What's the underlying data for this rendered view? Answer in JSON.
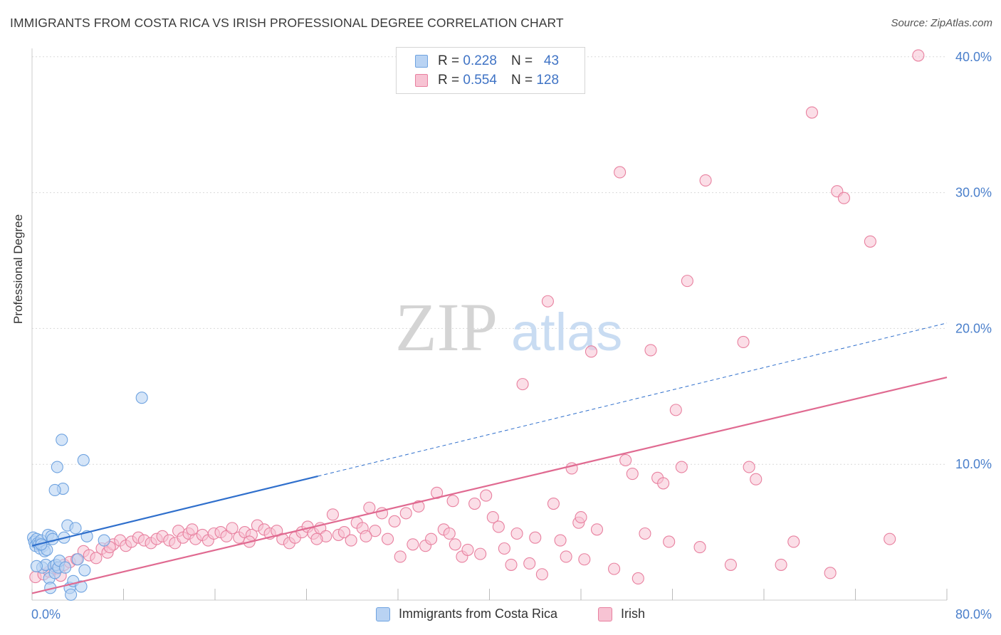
{
  "title": "IMMIGRANTS FROM COSTA RICA VS IRISH PROFESSIONAL DEGREE CORRELATION CHART",
  "source": "Source: ZipAtlas.com",
  "watermark": {
    "zip": "ZIP",
    "atlas": "atlas"
  },
  "colors": {
    "blue": "#6fa3e0",
    "blue_fill": "#b9d3f3",
    "blue_line": "#2f6fcc",
    "pink": "#e8809f",
    "pink_fill": "#f7c3d3",
    "pink_line": "#e06a91",
    "tick_text": "#4a7fcb",
    "grid": "#d9d9d9"
  },
  "legend": {
    "rows": [
      {
        "r_label": "R =",
        "r_value": "0.228",
        "n_label": "N =",
        "n_value": "43"
      },
      {
        "r_label": "R =",
        "r_value": "0.554",
        "n_label": "N =",
        "n_value": "128"
      }
    ]
  },
  "bottom_legend": [
    "Immigrants from Costa Rica",
    "Irish"
  ],
  "chart_data": {
    "type": "scatter",
    "title": "IMMIGRANTS FROM COSTA RICA VS IRISH PROFESSIONAL DEGREE CORRELATION CHART",
    "xlabel": "",
    "ylabel": "Professional Degree",
    "xlim": [
      0,
      80
    ],
    "ylim": [
      0,
      40.8
    ],
    "x_tick_labels": [
      "0.0%",
      "80.0%"
    ],
    "y_ticks": [
      10,
      20,
      30,
      40
    ],
    "y_tick_labels": [
      "10.0%",
      "20.0%",
      "30.0%",
      "40.0%"
    ],
    "grid": "horizontal dashed",
    "legend_position": "top-center",
    "series": [
      {
        "name": "Immigrants from Costa Rica",
        "color": "#6fa3e0",
        "trend": {
          "x0": 0,
          "y0": 4.0,
          "x1": 80,
          "y1": 20.4,
          "solid_until_x": 25
        },
        "points": [
          [
            0.1,
            4.6
          ],
          [
            0.2,
            4.3
          ],
          [
            0.3,
            4.0
          ],
          [
            0.4,
            4.5
          ],
          [
            0.5,
            4.2
          ],
          [
            0.6,
            4.1
          ],
          [
            0.7,
            3.8
          ],
          [
            0.8,
            4.4
          ],
          [
            0.9,
            2.4
          ],
          [
            1.0,
            4.0
          ],
          [
            1.1,
            3.6
          ],
          [
            1.2,
            2.6
          ],
          [
            1.3,
            3.7
          ],
          [
            1.4,
            4.8
          ],
          [
            1.5,
            1.6
          ],
          [
            1.6,
            0.9
          ],
          [
            1.7,
            4.7
          ],
          [
            1.8,
            4.5
          ],
          [
            1.9,
            2.5
          ],
          [
            2.0,
            2.0
          ],
          [
            2.1,
            2.6
          ],
          [
            2.2,
            9.8
          ],
          [
            2.3,
            2.4
          ],
          [
            2.4,
            2.9
          ],
          [
            2.6,
            11.8
          ],
          [
            2.7,
            8.2
          ],
          [
            2.8,
            4.6
          ],
          [
            2.9,
            2.4
          ],
          [
            3.1,
            5.5
          ],
          [
            3.3,
            0.9
          ],
          [
            3.4,
            0.4
          ],
          [
            3.6,
            1.4
          ],
          [
            3.8,
            5.3
          ],
          [
            4.0,
            3.0
          ],
          [
            4.3,
            1.0
          ],
          [
            4.5,
            10.3
          ],
          [
            4.6,
            2.2
          ],
          [
            4.8,
            4.7
          ],
          [
            6.3,
            4.4
          ],
          [
            9.6,
            14.9
          ],
          [
            0.4,
            2.5
          ],
          [
            2.0,
            8.1
          ],
          [
            0.8,
            4.1
          ]
        ]
      },
      {
        "name": "Irish",
        "color": "#e8809f",
        "trend": {
          "x0": 0,
          "y0": 0.5,
          "x1": 80,
          "y1": 16.4
        },
        "points": [
          [
            0.3,
            1.7
          ],
          [
            1.0,
            1.9
          ],
          [
            1.5,
            2.1
          ],
          [
            2.2,
            2.3
          ],
          [
            2.8,
            2.6
          ],
          [
            3.3,
            2.8
          ],
          [
            3.9,
            3.0
          ],
          [
            4.5,
            3.6
          ],
          [
            5.0,
            3.3
          ],
          [
            5.6,
            3.1
          ],
          [
            6.1,
            3.8
          ],
          [
            6.6,
            3.5
          ],
          [
            7.1,
            4.1
          ],
          [
            7.7,
            4.4
          ],
          [
            8.2,
            4.0
          ],
          [
            8.7,
            4.3
          ],
          [
            9.3,
            4.6
          ],
          [
            9.8,
            4.4
          ],
          [
            10.4,
            4.2
          ],
          [
            10.9,
            4.5
          ],
          [
            11.4,
            4.7
          ],
          [
            12.0,
            4.4
          ],
          [
            12.5,
            4.2
          ],
          [
            12.8,
            5.1
          ],
          [
            13.2,
            4.6
          ],
          [
            13.7,
            4.9
          ],
          [
            14.3,
            4.5
          ],
          [
            14.9,
            4.8
          ],
          [
            15.4,
            4.4
          ],
          [
            15.9,
            4.9
          ],
          [
            16.5,
            5.0
          ],
          [
            17.0,
            4.7
          ],
          [
            17.5,
            5.3
          ],
          [
            18.1,
            4.6
          ],
          [
            18.6,
            5.0
          ],
          [
            19.2,
            4.8
          ],
          [
            19.7,
            5.5
          ],
          [
            20.3,
            5.2
          ],
          [
            20.8,
            4.9
          ],
          [
            21.4,
            5.1
          ],
          [
            21.9,
            4.5
          ],
          [
            22.5,
            4.2
          ],
          [
            23.0,
            4.6
          ],
          [
            23.6,
            5.0
          ],
          [
            24.1,
            5.4
          ],
          [
            24.6,
            4.9
          ],
          [
            25.2,
            5.3
          ],
          [
            25.7,
            4.7
          ],
          [
            26.3,
            6.3
          ],
          [
            26.8,
            4.8
          ],
          [
            27.3,
            5.0
          ],
          [
            27.9,
            4.4
          ],
          [
            28.4,
            5.7
          ],
          [
            28.9,
            5.3
          ],
          [
            29.5,
            6.8
          ],
          [
            30.0,
            5.1
          ],
          [
            30.6,
            6.4
          ],
          [
            31.1,
            4.5
          ],
          [
            31.7,
            5.8
          ],
          [
            32.2,
            3.2
          ],
          [
            32.7,
            6.4
          ],
          [
            33.3,
            4.1
          ],
          [
            33.8,
            6.9
          ],
          [
            34.4,
            4.0
          ],
          [
            34.9,
            4.5
          ],
          [
            35.4,
            7.9
          ],
          [
            36.0,
            5.2
          ],
          [
            36.5,
            4.9
          ],
          [
            37.0,
            4.1
          ],
          [
            37.6,
            3.2
          ],
          [
            38.1,
            3.7
          ],
          [
            38.7,
            7.1
          ],
          [
            39.2,
            3.4
          ],
          [
            39.7,
            7.7
          ],
          [
            40.3,
            6.1
          ],
          [
            40.8,
            5.4
          ],
          [
            41.3,
            3.8
          ],
          [
            41.9,
            2.6
          ],
          [
            42.4,
            4.9
          ],
          [
            42.9,
            15.9
          ],
          [
            43.5,
            2.7
          ],
          [
            44.0,
            4.6
          ],
          [
            44.6,
            1.9
          ],
          [
            45.1,
            22.0
          ],
          [
            45.6,
            7.1
          ],
          [
            46.2,
            4.4
          ],
          [
            46.7,
            3.2
          ],
          [
            47.2,
            9.7
          ],
          [
            47.8,
            5.7
          ],
          [
            48.3,
            3.0
          ],
          [
            48.9,
            18.3
          ],
          [
            49.4,
            5.2
          ],
          [
            50.9,
            2.3
          ],
          [
            51.4,
            31.5
          ],
          [
            51.9,
            10.3
          ],
          [
            52.5,
            9.3
          ],
          [
            53.0,
            1.6
          ],
          [
            53.6,
            4.9
          ],
          [
            54.1,
            18.4
          ],
          [
            54.7,
            9.0
          ],
          [
            55.2,
            8.6
          ],
          [
            55.7,
            4.3
          ],
          [
            56.3,
            14.0
          ],
          [
            56.8,
            9.8
          ],
          [
            57.3,
            23.5
          ],
          [
            58.4,
            3.9
          ],
          [
            58.9,
            30.9
          ],
          [
            61.1,
            2.6
          ],
          [
            62.2,
            19.0
          ],
          [
            62.7,
            9.8
          ],
          [
            63.3,
            8.9
          ],
          [
            65.5,
            2.6
          ],
          [
            66.6,
            4.3
          ],
          [
            68.2,
            35.9
          ],
          [
            69.8,
            2.0
          ],
          [
            70.4,
            30.1
          ],
          [
            71.0,
            29.6
          ],
          [
            73.3,
            26.4
          ],
          [
            77.5,
            40.1
          ],
          [
            75.0,
            4.5
          ],
          [
            2.5,
            1.8
          ],
          [
            6.8,
            3.9
          ],
          [
            14.0,
            5.2
          ],
          [
            19.0,
            4.3
          ],
          [
            24.9,
            4.5
          ],
          [
            29.2,
            4.7
          ],
          [
            36.8,
            7.3
          ],
          [
            48.0,
            6.1
          ]
        ]
      }
    ]
  }
}
